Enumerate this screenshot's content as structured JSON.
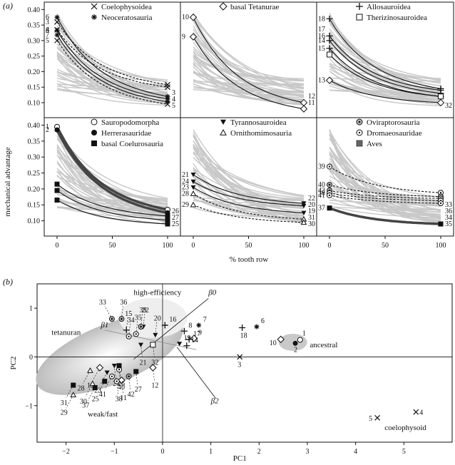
{
  "figure": {
    "panel_a_label": "(a)",
    "panel_b_label": "(b)"
  },
  "chart_data": [
    {
      "type": "line",
      "panel": "a",
      "ylabel": "mechanical advantage",
      "xlabel": "% tooth row",
      "x_ticks": [
        "0",
        "50",
        "100"
      ],
      "y_ticks_top": [
        "0.10",
        "0.15",
        "0.20",
        "0.25",
        "0.30",
        "0.35",
        "0.40"
      ],
      "y_ticks_bottom": [
        "0.10",
        "0.15",
        "0.20",
        "0.25",
        "0.30",
        "0.35",
        "0.40"
      ],
      "xlim": [
        0,
        100
      ],
      "ylim": [
        0.07,
        0.41
      ],
      "background_curve_color": "#c8c8c8",
      "subpanels": [
        {
          "id": "coelophysoidea-neoceratosauria",
          "legend": [
            {
              "symbol": "×",
              "label": "Coelophysoidea"
            },
            {
              "symbol": "∗",
              "label": "Neoceratosauria"
            }
          ],
          "series": [
            {
              "id": "6",
              "start": 0.375,
              "end": 0.12,
              "style": "solid",
              "marker": "∗"
            },
            {
              "id": "8",
              "start": 0.333,
              "end": 0.112,
              "style": "solid",
              "marker": "∗"
            },
            {
              "id": "7",
              "start": 0.318,
              "end": 0.103,
              "style": "solid",
              "marker": "∗"
            },
            {
              "id": "3",
              "start": 0.36,
              "end": 0.158,
              "style": "dashed",
              "marker": "×"
            },
            {
              "id": "4",
              "start": 0.335,
              "end": 0.15,
              "style": "dashed",
              "marker": "×"
            },
            {
              "id": "5",
              "start": 0.3,
              "end": 0.095,
              "style": "dashed",
              "marker": "×"
            }
          ],
          "end_labels": [
            "3",
            "4",
            "5"
          ]
        },
        {
          "id": "basal-tetanurae",
          "legend": [
            {
              "symbol": "◇",
              "label": "basal Tetanurae"
            }
          ],
          "series": [
            {
              "id": "10",
              "start": 0.375,
              "end": 0.1,
              "style": "solid",
              "marker": "◇"
            },
            {
              "id": "9",
              "start": 0.312,
              "end": 0.08,
              "style": "solid",
              "marker": "◇"
            }
          ],
          "end_labels": [
            "12",
            "11"
          ]
        },
        {
          "id": "allosauroidea-therizinosauroidea",
          "legend": [
            {
              "symbol": "+",
              "label": "Allosauroidea"
            },
            {
              "symbol": "□",
              "label": "Therizinosauroidea"
            }
          ],
          "series": [
            {
              "id": "18",
              "start": 0.37,
              "end": 0.145,
              "style": "solid",
              "marker": "+"
            },
            {
              "id": "16",
              "start": 0.315,
              "end": 0.14,
              "style": "solid",
              "marker": "+"
            },
            {
              "id": "14",
              "start": 0.3,
              "end": 0.13,
              "style": "solid",
              "marker": "+"
            },
            {
              "id": "15",
              "start": 0.275,
              "end": 0.12,
              "style": "solid",
              "marker": "+"
            },
            {
              "id": "13",
              "start": 0.172,
              "end": 0.1,
              "style": "solid",
              "marker": "◇"
            },
            {
              "id": "32",
              "start": 0.255,
              "end": 0.12,
              "style": "solid",
              "marker": "□"
            }
          ],
          "left_labels": [
            "18",
            "17",
            "16",
            "14",
            "15",
            "13"
          ],
          "end_labels": [
            "32"
          ]
        },
        {
          "id": "sauropodomorpha-herrerasauridae-basal-coelurosauria",
          "legend": [
            {
              "symbol": "○",
              "label": "Sauropodomorpha"
            },
            {
              "symbol": "●",
              "label": "Herrerasauridae"
            },
            {
              "symbol": "■",
              "label": "basal Coelurosauria"
            }
          ],
          "series": [
            {
              "id": "1",
              "start": 0.395,
              "end": 0.135,
              "style": "thick",
              "marker": "○"
            },
            {
              "id": "2",
              "start": 0.385,
              "end": 0.125,
              "style": "thick",
              "marker": "●"
            },
            {
              "id": "26",
              "start": 0.215,
              "end": 0.115,
              "style": "solid",
              "marker": "■"
            },
            {
              "id": "27",
              "start": 0.195,
              "end": 0.102,
              "style": "solid",
              "marker": "■"
            },
            {
              "id": "25",
              "start": 0.165,
              "end": 0.09,
              "style": "solid",
              "marker": "■"
            }
          ],
          "end_labels": [
            "26",
            "27",
            "25"
          ],
          "left_labels": [
            "1",
            "2"
          ]
        },
        {
          "id": "tyrannosauroidea-ornithomimosauria",
          "legend": [
            {
              "symbol": "▼",
              "label": "Tyrannosauroidea"
            },
            {
              "symbol": "△",
              "label": "Ornithomimosauria"
            }
          ],
          "series": [
            {
              "id": "21",
              "start": 0.245,
              "end": 0.155,
              "style": "solid",
              "marker": "▼"
            },
            {
              "id": "24",
              "start": 0.223,
              "end": 0.147,
              "style": "solid",
              "marker": "▼"
            },
            {
              "id": "23",
              "start": 0.205,
              "end": 0.125,
              "style": "solid",
              "marker": "▼"
            },
            {
              "id": "28",
              "start": 0.185,
              "end": 0.105,
              "style": "dashed",
              "marker": "△"
            },
            {
              "id": "29",
              "start": 0.15,
              "end": 0.095,
              "style": "dashed",
              "marker": "△"
            }
          ],
          "left_labels": [
            "21",
            "24",
            "23",
            "28",
            "29"
          ],
          "end_labels": [
            "22",
            "20",
            "19",
            "31",
            "30"
          ]
        },
        {
          "id": "oviraptorosauria-dromaeosauridae-aves",
          "legend": [
            {
              "symbol": "⊛",
              "label": "Oviraptorosauria"
            },
            {
              "symbol": "⊙",
              "label": "Dromaeosauridae"
            },
            {
              "symbol": "▪",
              "label": "Aves"
            }
          ],
          "series": [
            {
              "id": "39",
              "start": 0.27,
              "end": 0.188,
              "style": "dashed",
              "marker": "⊙"
            },
            {
              "id": "40",
              "start": 0.213,
              "end": 0.176,
              "style": "dashed",
              "marker": "⊛"
            },
            {
              "id": "42",
              "start": 0.195,
              "end": 0.17,
              "style": "dashed",
              "marker": "⊛"
            },
            {
              "id": "38",
              "start": 0.187,
              "end": 0.163,
              "style": "dashed",
              "marker": "⊙"
            },
            {
              "id": "41",
              "start": 0.18,
              "end": 0.155,
              "style": "dashed",
              "marker": "⊙"
            },
            {
              "id": "37",
              "start": 0.14,
              "end": 0.09,
              "style": "thick",
              "marker": "■"
            }
          ],
          "left_labels": [
            "39",
            "40",
            "42",
            "38",
            "41",
            "37"
          ],
          "end_labels": [
            "33",
            "36",
            "34",
            "35"
          ]
        }
      ]
    },
    {
      "type": "scatter",
      "panel": "b",
      "xlabel": "PC1",
      "ylabel": "PC2",
      "x_ticks": [
        "−2",
        "−1",
        "0",
        "1",
        "2",
        "3",
        "4",
        "5"
      ],
      "y_ticks": [
        "−1",
        "0",
        "1"
      ],
      "xlim": [
        -2.6,
        6.0
      ],
      "ylim": [
        -1.75,
        1.5
      ],
      "region_labels": [
        "high-efficiency",
        "tetanuran",
        "weak/fast",
        "ancestral",
        "coelophysoid"
      ],
      "vector_labels": [
        "β0",
        "β1",
        "β2"
      ],
      "points": [
        {
          "id": "1",
          "marker": "○",
          "x": 2.85,
          "y": 0.35
        },
        {
          "id": "2",
          "marker": "●",
          "x": 2.75,
          "y": 0.28
        },
        {
          "id": "10",
          "marker": "◇",
          "x": 2.45,
          "y": 0.36
        },
        {
          "id": "3",
          "marker": "×",
          "x": 1.6,
          "y": 0.0
        },
        {
          "id": "18",
          "marker": "+",
          "x": 1.65,
          "y": 0.6
        },
        {
          "id": "6",
          "marker": "∗",
          "x": 1.95,
          "y": 0.62
        },
        {
          "id": "4",
          "marker": "×",
          "x": 5.25,
          "y": -1.13
        },
        {
          "id": "5",
          "marker": "×",
          "x": 4.45,
          "y": -1.25
        },
        {
          "id": "7",
          "marker": "∗",
          "x": 0.75,
          "y": 0.65
        },
        {
          "id": "8",
          "marker": "+",
          "x": 0.45,
          "y": 0.53
        },
        {
          "id": "9",
          "marker": "◇",
          "x": 0.65,
          "y": 0.38
        },
        {
          "id": "17",
          "marker": "+",
          "x": 0.55,
          "y": 0.36
        },
        {
          "id": "14",
          "marker": "+",
          "x": 0.5,
          "y": 0.23
        },
        {
          "id": "19",
          "marker": "▼",
          "x": 0.35,
          "y": 0.27
        },
        {
          "id": "16",
          "marker": "+",
          "x": 0.05,
          "y": 0.65
        },
        {
          "id": "22",
          "marker": "▼",
          "x": -0.4,
          "y": 0.62
        },
        {
          "id": "20",
          "marker": "▼",
          "x": -0.15,
          "y": 0.45
        },
        {
          "id": "32",
          "marker": "□",
          "x": -0.2,
          "y": 0.25
        },
        {
          "id": "12",
          "marker": "◇",
          "x": -0.2,
          "y": -0.22
        },
        {
          "id": "21",
          "marker": "▼",
          "x": -0.45,
          "y": 0.25
        },
        {
          "id": "35",
          "marker": "⊙",
          "x": -0.55,
          "y": 0.47
        },
        {
          "id": "39",
          "marker": "⊛",
          "x": -0.45,
          "y": 0.62
        },
        {
          "id": "36",
          "marker": "⊛",
          "x": -0.85,
          "y": 0.78
        },
        {
          "id": "33",
          "marker": "⊛",
          "x": -1.05,
          "y": 0.78
        },
        {
          "id": "15",
          "marker": "+",
          "x": -0.75,
          "y": 0.55
        },
        {
          "id": "34",
          "marker": "⊙",
          "x": -0.7,
          "y": 0.42
        },
        {
          "id": "27",
          "marker": "■",
          "x": -0.55,
          "y": -0.3
        },
        {
          "id": "42",
          "marker": "⊛",
          "x": -0.7,
          "y": -0.4
        },
        {
          "id": "11",
          "marker": "◇",
          "x": -0.85,
          "y": -0.48
        },
        {
          "id": "40",
          "marker": "⊙",
          "x": -0.9,
          "y": -0.26
        },
        {
          "id": "26",
          "marker": "■",
          "x": -0.9,
          "y": -0.18
        },
        {
          "id": "24",
          "marker": "▼",
          "x": -1.0,
          "y": -0.18
        },
        {
          "id": "13",
          "marker": "◇",
          "x": -1.3,
          "y": -0.22
        },
        {
          "id": "23",
          "marker": "▼",
          "x": -1.15,
          "y": -0.32
        },
        {
          "id": "38",
          "marker": "⊙",
          "x": -0.95,
          "y": -0.5
        },
        {
          "id": "41",
          "marker": "⊙",
          "x": -1.05,
          "y": -0.4
        },
        {
          "id": "25",
          "marker": "■",
          "x": -1.2,
          "y": -0.5
        },
        {
          "id": "28",
          "marker": "△",
          "x": -1.5,
          "y": -0.28
        },
        {
          "id": "30",
          "marker": "△",
          "x": -1.45,
          "y": -0.55
        },
        {
          "id": "37",
          "marker": "■",
          "x": -1.4,
          "y": -0.63
        },
        {
          "id": "29",
          "marker": "△",
          "x": -1.85,
          "y": -0.78
        },
        {
          "id": "31",
          "marker": "■",
          "x": -1.85,
          "y": -0.58
        }
      ]
    }
  ]
}
